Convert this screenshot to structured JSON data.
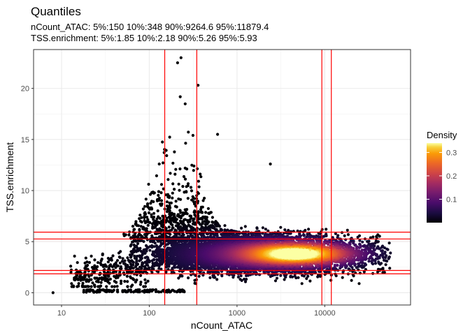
{
  "chart_data": {
    "type": "scatter",
    "title": "Quantiles",
    "subtitle_lines": [
      "nCount_ATAC: 5%:150 10%:348 90%:9264.6 95%:11879.4",
      "TSS.enrichment: 5%:1.85 10%:2.18 90%:5.26 95%:5.93"
    ],
    "xlabel": "nCount_ATAC",
    "ylabel": "TSS.enrichment",
    "x_scale": "log10",
    "xlim": [
      4.8,
      95000
    ],
    "ylim": [
      -1.2,
      23.8
    ],
    "x_ticks": [
      10,
      100,
      1000,
      10000
    ],
    "x_tick_labels": [
      "10",
      "100",
      "1000",
      "10000"
    ],
    "y_ticks": [
      0,
      5,
      10,
      15,
      20
    ],
    "y_tick_labels": [
      "0",
      "5",
      "10",
      "15",
      "20"
    ],
    "grid": true,
    "theme": "bw",
    "quantile_lines": {
      "x": [
        150,
        348,
        9264.6,
        11879.4
      ],
      "y": [
        1.85,
        2.18,
        5.26,
        5.93
      ],
      "color": "#ff0000"
    },
    "color_legend": {
      "title": "Density",
      "ticks": [
        0.1,
        0.2,
        0.3
      ],
      "tick_labels": [
        "0.1",
        "0.2",
        "0.3"
      ],
      "range": [
        0,
        0.34
      ],
      "placement": "right",
      "colormap": "inferno"
    },
    "density_center": {
      "x": 5000,
      "y": 3.8
    }
  }
}
